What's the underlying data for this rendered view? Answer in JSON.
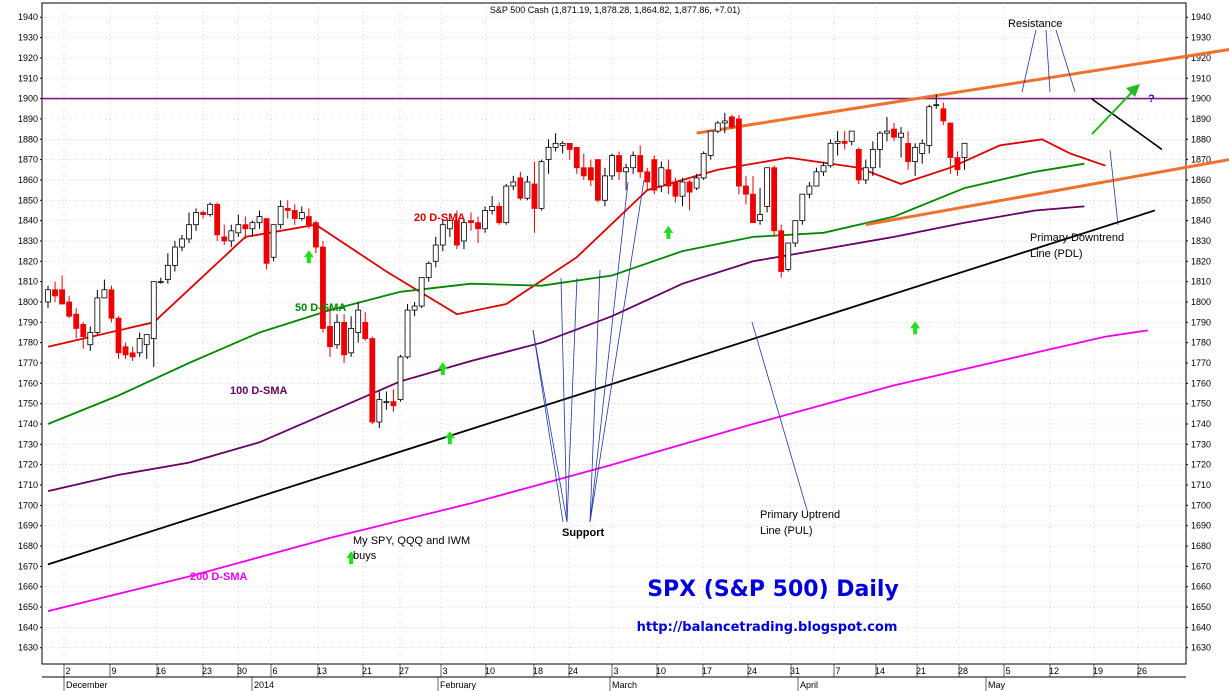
{
  "chart_data": {
    "type": "candlestick",
    "title": "S&P 500 Cash (1,871.19, 1,878.28, 1,864.82, 1,877.86, +7.01)",
    "watermark_title": "SPX (S&P 500) Daily",
    "url": "http://balancetrading.blogspot.com",
    "ylim": [
      1622,
      1947
    ],
    "y_ticks": [
      1630,
      1640,
      1650,
      1660,
      1670,
      1680,
      1690,
      1700,
      1710,
      1720,
      1730,
      1740,
      1750,
      1760,
      1770,
      1780,
      1790,
      1800,
      1810,
      1820,
      1830,
      1840,
      1850,
      1860,
      1870,
      1880,
      1890,
      1900,
      1910,
      1920,
      1930,
      1940
    ],
    "x_day_labels": [
      "2",
      "9",
      "16",
      "23",
      "30",
      "6",
      "13",
      "21",
      "27",
      "3",
      "10",
      "18",
      "24",
      "3",
      "10",
      "17",
      "24",
      "31",
      "7",
      "14",
      "21",
      "28",
      "5",
      "12",
      "19",
      "26"
    ],
    "x_month_labels": [
      "December",
      "2014",
      "February",
      "March",
      "April",
      "May"
    ],
    "candles": [
      {
        "o": 1800,
        "h": 1808,
        "l": 1797,
        "c": 1806
      },
      {
        "o": 1806,
        "h": 1810,
        "l": 1800,
        "c": 1803
      },
      {
        "o": 1806,
        "h": 1813,
        "l": 1799,
        "c": 1799
      },
      {
        "o": 1800,
        "h": 1803,
        "l": 1792,
        "c": 1793
      },
      {
        "o": 1794,
        "h": 1797,
        "l": 1782,
        "c": 1787
      },
      {
        "o": 1789,
        "h": 1790,
        "l": 1777,
        "c": 1783
      },
      {
        "o": 1779,
        "h": 1788,
        "l": 1776,
        "c": 1785
      },
      {
        "o": 1785,
        "h": 1806,
        "l": 1784,
        "c": 1802
      },
      {
        "o": 1802,
        "h": 1811,
        "l": 1802,
        "c": 1806
      },
      {
        "o": 1806,
        "h": 1808,
        "l": 1790,
        "c": 1792
      },
      {
        "o": 1792,
        "h": 1793,
        "l": 1772,
        "c": 1775
      },
      {
        "o": 1778,
        "h": 1780,
        "l": 1772,
        "c": 1774
      },
      {
        "o": 1775,
        "h": 1778,
        "l": 1771,
        "c": 1773
      },
      {
        "o": 1775,
        "h": 1785,
        "l": 1773,
        "c": 1782
      },
      {
        "o": 1779,
        "h": 1783,
        "l": 1772,
        "c": 1784
      },
      {
        "o": 1782,
        "h": 1810,
        "l": 1768,
        "c": 1810
      },
      {
        "o": 1810,
        "h": 1812,
        "l": 1809,
        "c": 1810
      },
      {
        "o": 1811,
        "h": 1824,
        "l": 1809,
        "c": 1818
      },
      {
        "o": 1818,
        "h": 1830,
        "l": 1815,
        "c": 1827
      },
      {
        "o": 1827,
        "h": 1833,
        "l": 1825,
        "c": 1831
      },
      {
        "o": 1831,
        "h": 1844,
        "l": 1829,
        "c": 1838
      },
      {
        "o": 1838,
        "h": 1846,
        "l": 1835,
        "c": 1844
      },
      {
        "o": 1844,
        "h": 1845,
        "l": 1841,
        "c": 1843
      },
      {
        "o": 1843,
        "h": 1849,
        "l": 1842,
        "c": 1848
      },
      {
        "o": 1848,
        "h": 1849,
        "l": 1830,
        "c": 1833
      },
      {
        "o": 1832,
        "h": 1838,
        "l": 1828,
        "c": 1830
      },
      {
        "o": 1830,
        "h": 1838,
        "l": 1827,
        "c": 1835
      },
      {
        "o": 1834,
        "h": 1843,
        "l": 1832,
        "c": 1838
      },
      {
        "o": 1838,
        "h": 1842,
        "l": 1831,
        "c": 1836
      },
      {
        "o": 1836,
        "h": 1840,
        "l": 1832,
        "c": 1839
      },
      {
        "o": 1839,
        "h": 1845,
        "l": 1836,
        "c": 1842
      },
      {
        "o": 1841,
        "h": 1841,
        "l": 1816,
        "c": 1819
      },
      {
        "o": 1822,
        "h": 1836,
        "l": 1820,
        "c": 1838
      },
      {
        "o": 1838,
        "h": 1850,
        "l": 1836,
        "c": 1847
      },
      {
        "o": 1846,
        "h": 1850,
        "l": 1841,
        "c": 1845
      },
      {
        "o": 1845,
        "h": 1848,
        "l": 1838,
        "c": 1841
      },
      {
        "o": 1841,
        "h": 1847,
        "l": 1840,
        "c": 1844
      },
      {
        "o": 1842,
        "h": 1846,
        "l": 1836,
        "c": 1838
      },
      {
        "o": 1839,
        "h": 1840,
        "l": 1824,
        "c": 1827
      },
      {
        "o": 1827,
        "h": 1830,
        "l": 1785,
        "c": 1787
      },
      {
        "o": 1788,
        "h": 1798,
        "l": 1773,
        "c": 1778
      },
      {
        "o": 1779,
        "h": 1794,
        "l": 1777,
        "c": 1790
      },
      {
        "o": 1790,
        "h": 1794,
        "l": 1770,
        "c": 1774
      },
      {
        "o": 1775,
        "h": 1793,
        "l": 1773,
        "c": 1787
      },
      {
        "o": 1785,
        "h": 1800,
        "l": 1780,
        "c": 1796
      },
      {
        "o": 1790,
        "h": 1795,
        "l": 1781,
        "c": 1782
      },
      {
        "o": 1782,
        "h": 1783,
        "l": 1740,
        "c": 1741
      },
      {
        "o": 1741,
        "h": 1756,
        "l": 1738,
        "c": 1752
      },
      {
        "o": 1751,
        "h": 1756,
        "l": 1747,
        "c": 1751
      },
      {
        "o": 1751,
        "h": 1757,
        "l": 1746,
        "c": 1749
      },
      {
        "o": 1752,
        "h": 1774,
        "l": 1751,
        "c": 1773
      },
      {
        "o": 1773,
        "h": 1799,
        "l": 1772,
        "c": 1796
      },
      {
        "o": 1796,
        "h": 1800,
        "l": 1793,
        "c": 1798
      },
      {
        "o": 1798,
        "h": 1812,
        "l": 1797,
        "c": 1812
      },
      {
        "o": 1812,
        "h": 1820,
        "l": 1810,
        "c": 1819
      },
      {
        "o": 1820,
        "h": 1832,
        "l": 1817,
        "c": 1828
      },
      {
        "o": 1828,
        "h": 1841,
        "l": 1825,
        "c": 1838
      },
      {
        "o": 1836,
        "h": 1842,
        "l": 1832,
        "c": 1840
      },
      {
        "o": 1840,
        "h": 1845,
        "l": 1826,
        "c": 1828
      },
      {
        "o": 1830,
        "h": 1841,
        "l": 1826,
        "c": 1839
      },
      {
        "o": 1840,
        "h": 1844,
        "l": 1835,
        "c": 1839
      },
      {
        "o": 1839,
        "h": 1842,
        "l": 1829,
        "c": 1836
      },
      {
        "o": 1836,
        "h": 1847,
        "l": 1834,
        "c": 1845
      },
      {
        "o": 1845,
        "h": 1852,
        "l": 1843,
        "c": 1847
      },
      {
        "o": 1847,
        "h": 1849,
        "l": 1838,
        "c": 1839
      },
      {
        "o": 1839,
        "h": 1858,
        "l": 1838,
        "c": 1857
      },
      {
        "o": 1857,
        "h": 1862,
        "l": 1855,
        "c": 1859
      },
      {
        "o": 1861,
        "h": 1864,
        "l": 1850,
        "c": 1851
      },
      {
        "o": 1851,
        "h": 1862,
        "l": 1850,
        "c": 1859
      },
      {
        "o": 1858,
        "h": 1869,
        "l": 1834,
        "c": 1846
      },
      {
        "o": 1846,
        "h": 1870,
        "l": 1845,
        "c": 1869
      },
      {
        "o": 1870,
        "h": 1880,
        "l": 1863,
        "c": 1876
      },
      {
        "o": 1876,
        "h": 1883,
        "l": 1874,
        "c": 1878
      },
      {
        "o": 1877,
        "h": 1879,
        "l": 1873,
        "c": 1878
      },
      {
        "o": 1878,
        "h": 1878,
        "l": 1870,
        "c": 1875
      },
      {
        "o": 1876,
        "h": 1876,
        "l": 1863,
        "c": 1866
      },
      {
        "o": 1866,
        "h": 1873,
        "l": 1860,
        "c": 1862
      },
      {
        "o": 1866,
        "h": 1870,
        "l": 1857,
        "c": 1860
      },
      {
        "o": 1870,
        "h": 1870,
        "l": 1849,
        "c": 1850
      },
      {
        "o": 1850,
        "h": 1866,
        "l": 1847,
        "c": 1862
      },
      {
        "o": 1862,
        "h": 1873,
        "l": 1860,
        "c": 1872
      },
      {
        "o": 1872,
        "h": 1874,
        "l": 1860,
        "c": 1864
      },
      {
        "o": 1864,
        "h": 1868,
        "l": 1855,
        "c": 1866
      },
      {
        "o": 1866,
        "h": 1874,
        "l": 1863,
        "c": 1872
      },
      {
        "o": 1872,
        "h": 1877,
        "l": 1861,
        "c": 1864
      },
      {
        "o": 1864,
        "h": 1866,
        "l": 1855,
        "c": 1859
      },
      {
        "o": 1870,
        "h": 1872,
        "l": 1853,
        "c": 1855
      },
      {
        "o": 1857,
        "h": 1869,
        "l": 1854,
        "c": 1866
      },
      {
        "o": 1865,
        "h": 1870,
        "l": 1853,
        "c": 1857
      },
      {
        "o": 1859,
        "h": 1861,
        "l": 1849,
        "c": 1852
      },
      {
        "o": 1852,
        "h": 1861,
        "l": 1847,
        "c": 1859
      },
      {
        "o": 1859,
        "h": 1860,
        "l": 1845,
        "c": 1854
      },
      {
        "o": 1856,
        "h": 1863,
        "l": 1855,
        "c": 1861
      },
      {
        "o": 1861,
        "h": 1874,
        "l": 1860,
        "c": 1873
      },
      {
        "o": 1872,
        "h": 1884,
        "l": 1870,
        "c": 1884
      },
      {
        "o": 1884,
        "h": 1889,
        "l": 1883,
        "c": 1888
      },
      {
        "o": 1888,
        "h": 1893,
        "l": 1883,
        "c": 1889
      },
      {
        "o": 1891,
        "h": 1892,
        "l": 1885,
        "c": 1886
      },
      {
        "o": 1890,
        "h": 1892,
        "l": 1853,
        "c": 1857
      },
      {
        "o": 1857,
        "h": 1862,
        "l": 1848,
        "c": 1853
      },
      {
        "o": 1853,
        "h": 1862,
        "l": 1839,
        "c": 1839
      },
      {
        "o": 1840,
        "h": 1856,
        "l": 1838,
        "c": 1843
      },
      {
        "o": 1847,
        "h": 1866,
        "l": 1844,
        "c": 1866
      },
      {
        "o": 1866,
        "h": 1867,
        "l": 1832,
        "c": 1835
      },
      {
        "o": 1835,
        "h": 1838,
        "l": 1812,
        "c": 1815
      },
      {
        "o": 1816,
        "h": 1828,
        "l": 1815,
        "c": 1829
      },
      {
        "o": 1829,
        "h": 1840,
        "l": 1827,
        "c": 1840
      },
      {
        "o": 1840,
        "h": 1853,
        "l": 1838,
        "c": 1853
      },
      {
        "o": 1853,
        "h": 1859,
        "l": 1851,
        "c": 1857
      },
      {
        "o": 1857,
        "h": 1866,
        "l": 1857,
        "c": 1864
      },
      {
        "o": 1864,
        "h": 1869,
        "l": 1862,
        "c": 1867
      },
      {
        "o": 1867,
        "h": 1880,
        "l": 1866,
        "c": 1878
      },
      {
        "o": 1878,
        "h": 1884,
        "l": 1872,
        "c": 1879
      },
      {
        "o": 1879,
        "h": 1884,
        "l": 1875,
        "c": 1878
      },
      {
        "o": 1879,
        "h": 1884,
        "l": 1877,
        "c": 1884
      },
      {
        "o": 1875,
        "h": 1876,
        "l": 1858,
        "c": 1860
      },
      {
        "o": 1860,
        "h": 1870,
        "l": 1858,
        "c": 1866
      },
      {
        "o": 1866,
        "h": 1879,
        "l": 1862,
        "c": 1875
      },
      {
        "o": 1875,
        "h": 1884,
        "l": 1866,
        "c": 1883
      },
      {
        "o": 1883,
        "h": 1891,
        "l": 1879,
        "c": 1884
      },
      {
        "o": 1885,
        "h": 1888,
        "l": 1879,
        "c": 1881
      },
      {
        "o": 1881,
        "h": 1886,
        "l": 1871,
        "c": 1883
      },
      {
        "o": 1878,
        "h": 1884,
        "l": 1865,
        "c": 1869
      },
      {
        "o": 1869,
        "h": 1878,
        "l": 1862,
        "c": 1876
      },
      {
        "o": 1873,
        "h": 1880,
        "l": 1868,
        "c": 1878
      },
      {
        "o": 1877,
        "h": 1897,
        "l": 1873,
        "c": 1896
      },
      {
        "o": 1897,
        "h": 1902,
        "l": 1895,
        "c": 1897
      },
      {
        "o": 1895,
        "h": 1898,
        "l": 1887,
        "c": 1889
      },
      {
        "o": 1888,
        "h": 1888,
        "l": 1863,
        "c": 1871
      },
      {
        "o": 1871,
        "h": 1874,
        "l": 1862,
        "c": 1865
      },
      {
        "o": 1871,
        "h": 1878,
        "l": 1865,
        "c": 1878
      }
    ],
    "moving_averages": [
      {
        "name": "20 D-SMA",
        "color": "#dd0000",
        "points": [
          [
            0,
            1778
          ],
          [
            15,
            1790
          ],
          [
            28,
            1832
          ],
          [
            38,
            1838
          ],
          [
            48,
            1815
          ],
          [
            58,
            1794
          ],
          [
            65,
            1799
          ],
          [
            75,
            1822
          ],
          [
            85,
            1855
          ],
          [
            95,
            1865
          ],
          [
            105,
            1871
          ],
          [
            115,
            1866
          ],
          [
            121,
            1858
          ],
          [
            128,
            1866
          ],
          [
            135,
            1877
          ],
          [
            141,
            1880
          ],
          [
            145,
            1873
          ],
          [
            150,
            1867
          ]
        ]
      },
      {
        "name": "50 D-SMA",
        "color": "#008800",
        "points": [
          [
            0,
            1740
          ],
          [
            10,
            1754
          ],
          [
            20,
            1770
          ],
          [
            30,
            1785
          ],
          [
            40,
            1796
          ],
          [
            50,
            1805
          ],
          [
            60,
            1809
          ],
          [
            70,
            1808
          ],
          [
            80,
            1813
          ],
          [
            90,
            1825
          ],
          [
            100,
            1832
          ],
          [
            110,
            1834
          ],
          [
            120,
            1842
          ],
          [
            130,
            1856
          ],
          [
            140,
            1864
          ],
          [
            147,
            1868
          ]
        ]
      },
      {
        "name": "100 D-SMA",
        "color": "#660066",
        "points": [
          [
            0,
            1707
          ],
          [
            10,
            1715
          ],
          [
            20,
            1721
          ],
          [
            30,
            1731
          ],
          [
            40,
            1746
          ],
          [
            50,
            1761
          ],
          [
            60,
            1771
          ],
          [
            70,
            1780
          ],
          [
            80,
            1793
          ],
          [
            90,
            1809
          ],
          [
            100,
            1820
          ],
          [
            110,
            1826
          ],
          [
            120,
            1832
          ],
          [
            130,
            1839
          ],
          [
            140,
            1845
          ],
          [
            147,
            1847
          ]
        ]
      },
      {
        "name": "200 D-SMA",
        "color": "#ee00ee",
        "points": [
          [
            0,
            1648
          ],
          [
            20,
            1665
          ],
          [
            40,
            1684
          ],
          [
            60,
            1701
          ],
          [
            80,
            1720
          ],
          [
            100,
            1740
          ],
          [
            120,
            1759
          ],
          [
            140,
            1775
          ],
          [
            150,
            1783
          ],
          [
            156,
            1786
          ]
        ]
      }
    ],
    "annotations": {
      "sma20": "20 D-SMA",
      "sma50": "50 D-SMA",
      "sma100": "100 D-SMA",
      "sma200": "200 D-SMA",
      "resistance": "Resistance",
      "support": "Support",
      "pul_1": "Primary Uptrend",
      "pul_2": "Line (PUL)",
      "pdl_1": "Primary Downtrend",
      "pdl_2": "Line (PDL)",
      "buys_1": "My SPY, QQQ and IWM",
      "buys_2": "buys",
      "question": "?"
    },
    "trend_lines": {
      "resistance_level": 1900,
      "primary_uptrend": [
        [
          0,
          1671
        ],
        [
          157,
          1845
        ]
      ],
      "channel_upper": [
        [
          92,
          1883
        ],
        [
          171,
          1926
        ]
      ],
      "channel_lower": [
        [
          116,
          1838
        ],
        [
          174,
          1874
        ]
      ],
      "downtrend": [
        [
          148,
          1900
        ],
        [
          158,
          1875
        ]
      ]
    },
    "buy_arrows": [
      [
        37,
        1822
      ],
      [
        56,
        1767
      ],
      [
        57,
        1733
      ],
      [
        88,
        1834
      ],
      [
        123,
        1787
      ],
      [
        43,
        1674
      ]
    ],
    "colors": {
      "up": "#ffffff",
      "down": "#ee0000",
      "resistance": "#7a1f7a",
      "channel": "#f07030",
      "uptrend": "#000000"
    },
    "grid": true,
    "legend": "none"
  }
}
